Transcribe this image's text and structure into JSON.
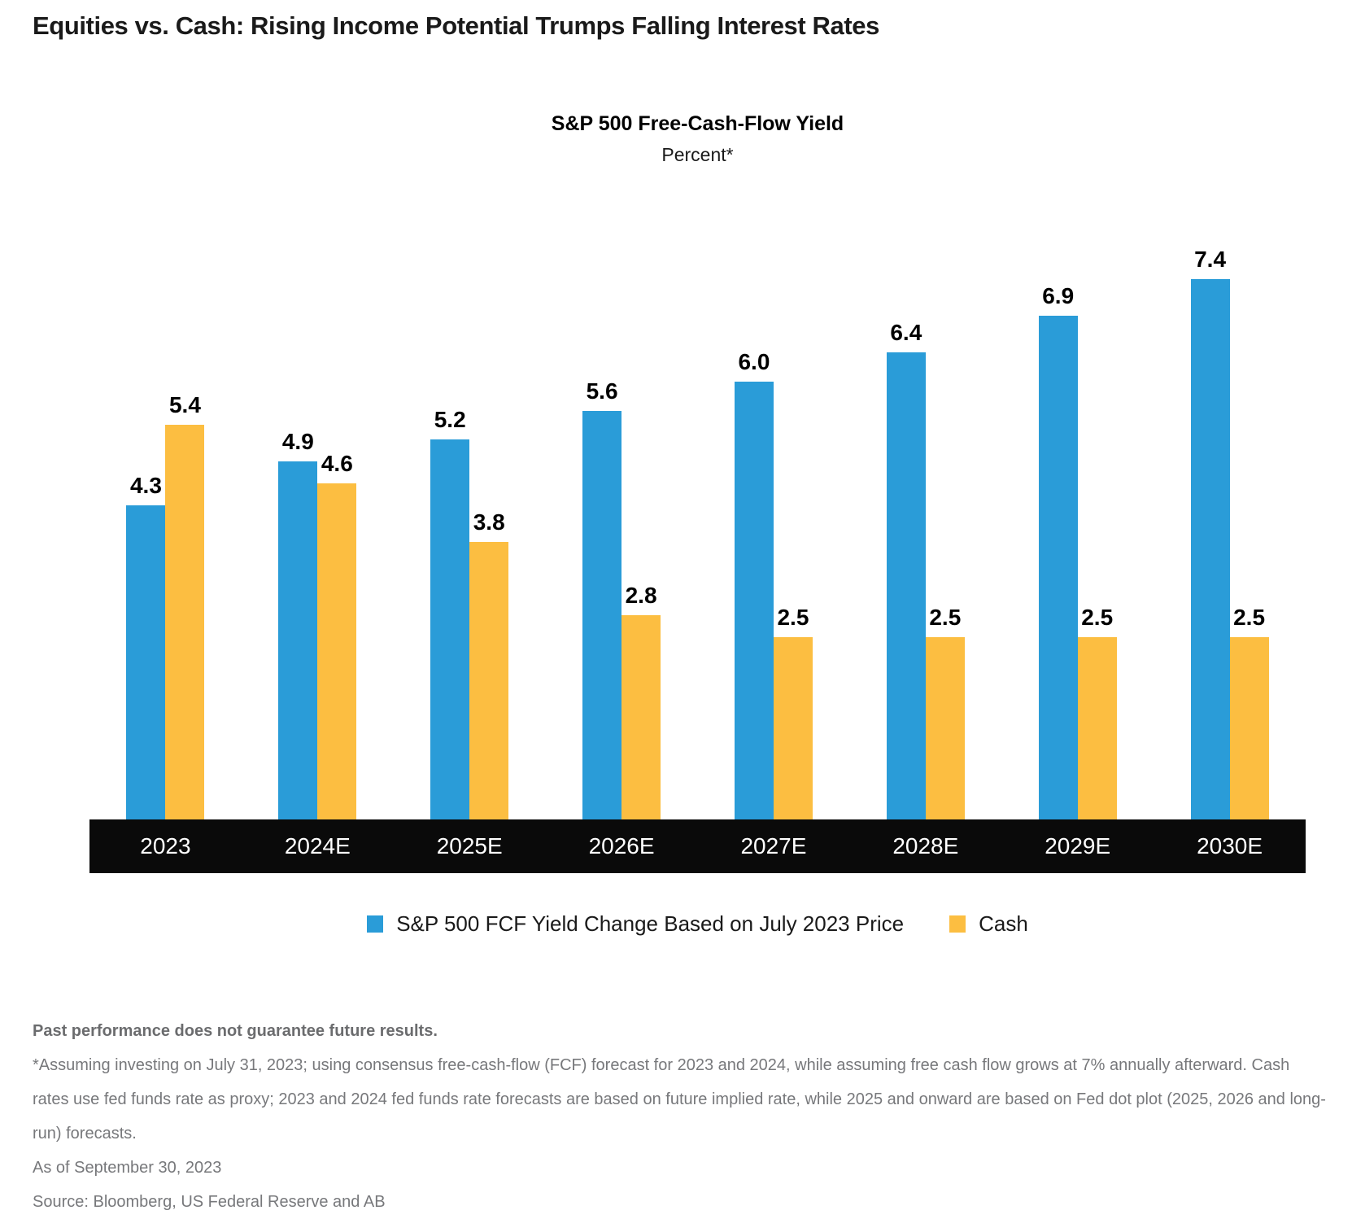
{
  "page": {
    "title": "Equities vs. Cash: Rising Income Potential Trumps Falling Interest Rates"
  },
  "chart_data": {
    "type": "bar",
    "title": "S&P 500 Free-Cash-Flow Yield",
    "subtitle": "Percent*",
    "categories": [
      "2023",
      "2024E",
      "2025E",
      "2026E",
      "2027E",
      "2028E",
      "2029E",
      "2030E"
    ],
    "series": [
      {
        "name": "S&P 500 FCF Yield Change Based on July 2023 Price",
        "color": "#2A9CD8",
        "values": [
          4.3,
          4.9,
          5.2,
          5.6,
          6.0,
          6.4,
          6.9,
          7.4
        ]
      },
      {
        "name": "Cash",
        "color": "#FCBE41",
        "values": [
          5.4,
          4.6,
          3.8,
          2.8,
          2.5,
          2.5,
          2.5,
          2.5
        ]
      }
    ],
    "ymin": 0,
    "ymax": 7.4,
    "value_labels": true,
    "value_label_decimals": 1,
    "grid": false,
    "legend_position": "bottom",
    "xaxis_style": "black-band-white-text",
    "colors": {
      "equities_blue": "#2A9CD8",
      "cash_yellow": "#FCBE41",
      "axis_band_black": "#0A0A0A"
    }
  },
  "footer": {
    "disclaimer": "Past performance does not guarantee future results.",
    "footnote": "*Assuming investing on July 31, 2023; using consensus free-cash-flow (FCF) forecast for 2023 and 2024, while assuming free cash flow grows at 7% annually afterward. Cash rates use fed funds rate as proxy; 2023 and 2024 fed funds rate forecasts are based on future implied rate, while 2025 and onward are based on Fed dot plot (2025, 2026 and long-run) forecasts.",
    "as_of": "As of September 30, 2023",
    "source": "Source: Bloomberg, US Federal Reserve and AB"
  }
}
